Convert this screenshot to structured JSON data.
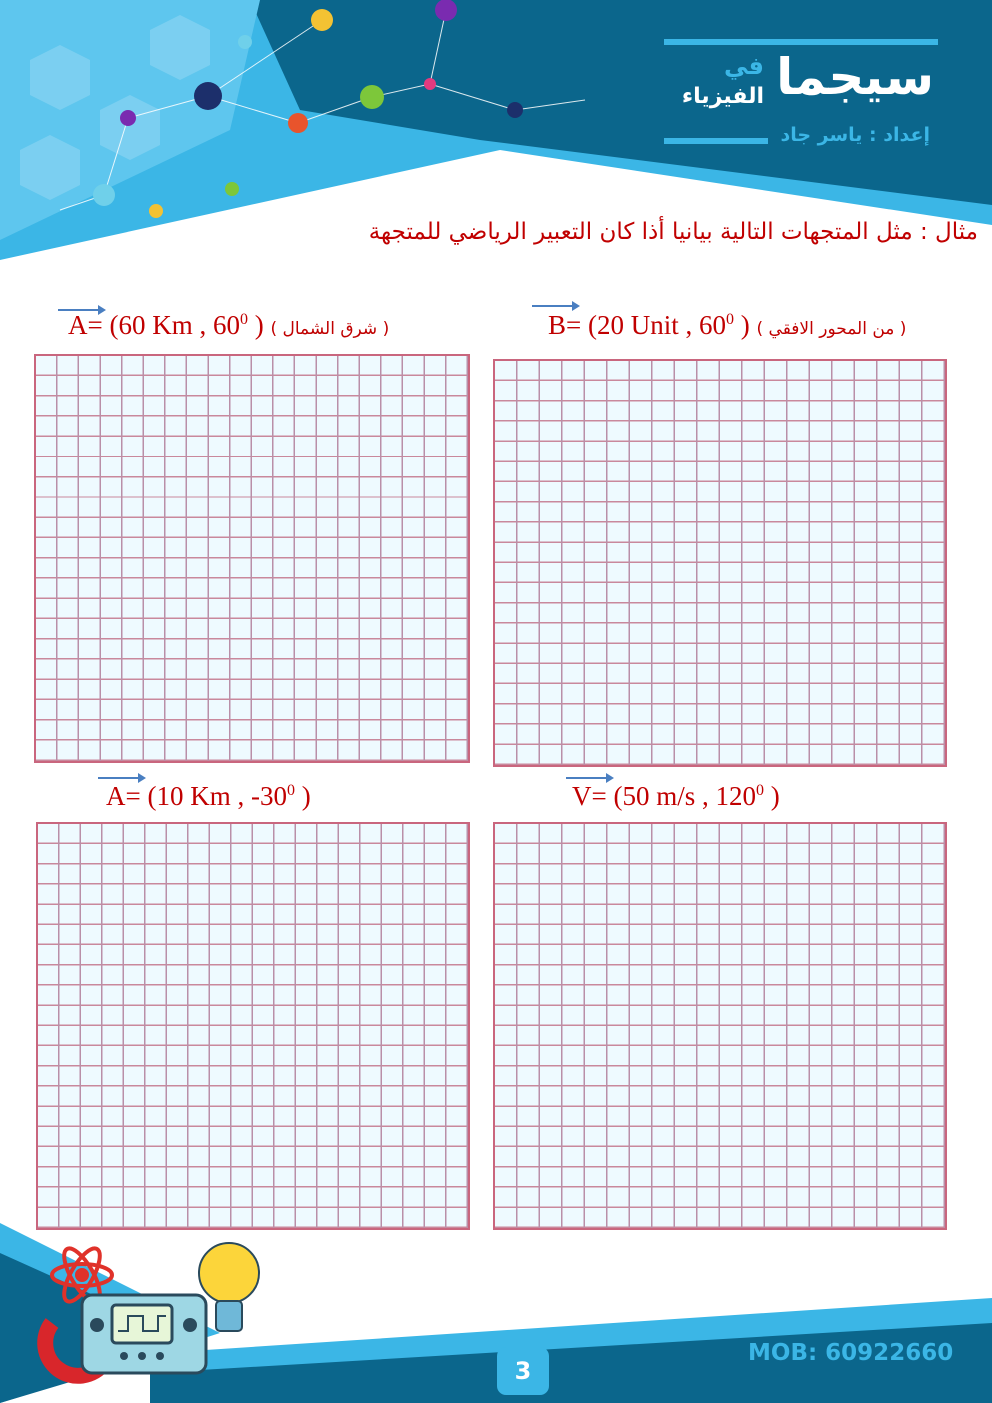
{
  "header": {
    "brand_main": "سيجما",
    "brand_fi": "في",
    "brand_sub": "الفيزياء",
    "author": "إعداد : ياسر جاد"
  },
  "instruction": "مثال : مثل المتجهات التالية بيانيا أذا كان التعبير الرياضي للمتجهة",
  "exercises": [
    {
      "prefix": "A= (60 Km , 60",
      "sup": "0",
      "suffix": " ) ",
      "note": "( شرق الشمال )"
    },
    {
      "prefix": "B= (20 Unit , 60",
      "sup": "0",
      "suffix": " ) ",
      "note": "( من المحور الافقي )"
    },
    {
      "prefix": "A= (10 Km , -30",
      "sup": "0",
      "suffix": " )",
      "note": ""
    },
    {
      "prefix": "V= (50 m/s , 120",
      "sup": "0",
      "suffix": " )",
      "note": ""
    }
  ],
  "grid": {
    "columns": 20,
    "rows": 20
  },
  "footer": {
    "page_number": "3",
    "mobile": "MOB: 60922660"
  },
  "colors": {
    "dark_blue": "#0b668c",
    "light_blue": "#3bb6e6",
    "title_red": "#c00000",
    "grid_line": "#c9667e"
  }
}
